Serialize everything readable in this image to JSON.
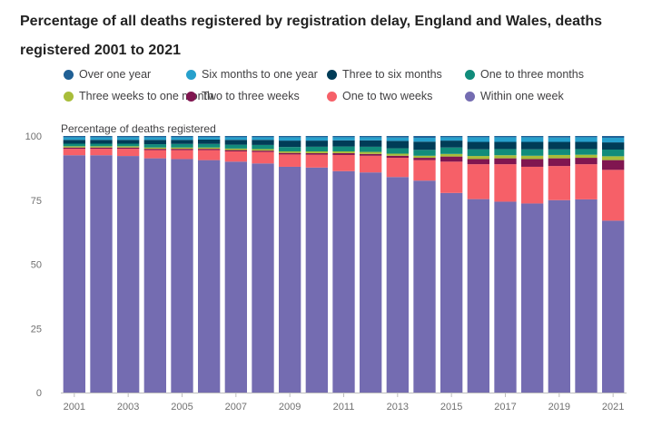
{
  "title": "Percentage of all deaths registered by registration delay, England and Wales, deaths registered 2001 to 2021",
  "chart_data": {
    "type": "bar",
    "stacked": true,
    "title": "Percentage of all deaths registered by registration delay, England and Wales, deaths registered 2001 to 2021",
    "ylabel": "Percentage of deaths registered",
    "xlabel": "",
    "ylim": [
      0,
      100
    ],
    "yticks": [
      "0",
      "25",
      "50",
      "75",
      "100"
    ],
    "xtick_labels": [
      "2001",
      "2003",
      "2005",
      "2007",
      "2009",
      "2011",
      "2013",
      "2015",
      "2017",
      "2019",
      "2021"
    ],
    "grid": false,
    "legend_position": "top",
    "categories": [
      "2001",
      "2002",
      "2003",
      "2004",
      "2005",
      "2006",
      "2007",
      "2008",
      "2009",
      "2010",
      "2011",
      "2012",
      "2013",
      "2014",
      "2015",
      "2016",
      "2017",
      "2018",
      "2019",
      "2020",
      "2021"
    ],
    "series": [
      {
        "name": "Within one week",
        "color": "#746cb1",
        "values": [
          92.5,
          92.5,
          92.2,
          91.3,
          91.0,
          90.6,
          90.0,
          89.3,
          88.0,
          87.7,
          86.3,
          85.8,
          84.0,
          82.6,
          77.8,
          75.4,
          74.4,
          73.7,
          75.0,
          75.3,
          67.0
        ]
      },
      {
        "name": "One to two weeks",
        "color": "#f66068",
        "values": [
          2.5,
          2.5,
          2.8,
          3.2,
          3.5,
          3.9,
          4.0,
          4.5,
          4.8,
          5.0,
          6.3,
          6.5,
          7.5,
          8.0,
          12.2,
          13.6,
          14.6,
          14.3,
          13.3,
          13.7,
          19.8
        ]
      },
      {
        "name": "Two to three weeks",
        "color": "#801650",
        "values": [
          0.5,
          0.5,
          0.5,
          0.5,
          0.5,
          0.5,
          0.5,
          0.5,
          0.6,
          0.6,
          0.7,
          0.7,
          0.8,
          0.9,
          2.0,
          2.0,
          2.3,
          3.0,
          3.0,
          2.5,
          3.8
        ]
      },
      {
        "name": "Three weeks to one month",
        "color": "#a8bd3a",
        "values": [
          0.5,
          0.5,
          0.5,
          0.5,
          0.5,
          0.5,
          0.6,
          0.6,
          0.6,
          0.7,
          0.7,
          0.8,
          0.8,
          0.8,
          1.0,
          1.2,
          1.2,
          1.3,
          1.3,
          1.2,
          1.5
        ]
      },
      {
        "name": "One to three months",
        "color": "#118c7b",
        "values": [
          1.0,
          1.0,
          1.0,
          1.3,
          1.4,
          1.4,
          1.5,
          1.6,
          1.7,
          1.8,
          1.9,
          2.0,
          2.1,
          2.3,
          2.5,
          2.6,
          2.4,
          2.5,
          2.2,
          2.2,
          2.6
        ]
      },
      {
        "name": "Three to six months",
        "color": "#003c57",
        "values": [
          1.5,
          1.5,
          1.5,
          1.7,
          1.6,
          1.7,
          1.9,
          2.0,
          2.5,
          2.4,
          2.4,
          2.5,
          2.9,
          3.2,
          2.7,
          2.9,
          2.8,
          2.9,
          2.9,
          2.8,
          2.8
        ]
      },
      {
        "name": "Six months to one year",
        "color": "#27a0cc",
        "values": [
          1.0,
          1.0,
          1.0,
          1.0,
          1.0,
          0.9,
          1.0,
          1.0,
          1.3,
          1.3,
          1.2,
          1.2,
          1.3,
          1.5,
          1.3,
          1.8,
          1.8,
          1.8,
          1.7,
          1.8,
          1.8
        ]
      },
      {
        "name": "Over one year",
        "color": "#206095",
        "values": [
          0.5,
          0.5,
          0.5,
          0.5,
          0.5,
          0.5,
          0.5,
          0.5,
          0.5,
          0.5,
          0.5,
          0.5,
          0.6,
          0.7,
          0.5,
          0.5,
          0.5,
          0.5,
          0.6,
          0.5,
          0.7
        ]
      }
    ],
    "legend_order": [
      "Over one year",
      "Six months to one year",
      "Three to six months",
      "One to three months",
      "Three weeks to one month",
      "Two to three weeks",
      "One to two weeks",
      "Within one week"
    ]
  }
}
